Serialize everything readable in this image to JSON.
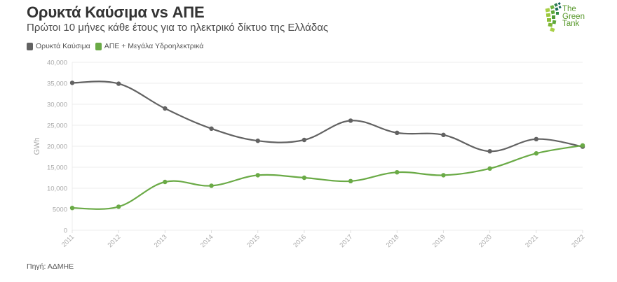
{
  "header": {
    "title": "Ορυκτά Καύσιμα vs ΑΠΕ",
    "subtitle": "Πρώτοι 10 μήνες κάθε έτους για το ηλεκτρικό δίκτυο της Ελλάδας"
  },
  "logo": {
    "line1": "The",
    "line2": "Green",
    "line3": "Tank"
  },
  "legend": [
    {
      "label": "Ορυκτά Καύσιμα",
      "color": "#626262"
    },
    {
      "label": "ΑΠΕ + Μεγάλα Υδροηλεκτρικά",
      "color": "#6aaa46"
    }
  ],
  "footer": {
    "source": "Πηγή: ΑΔΜΗΕ"
  },
  "chart_data": {
    "type": "line",
    "title": "Ορυκτά Καύσιμα vs ΑΠΕ",
    "subtitle": "Πρώτοι 10 μήνες κάθε έτους για το ηλεκτρικό δίκτυο της Ελλάδας",
    "xlabel": "",
    "ylabel": "GWh",
    "categories": [
      "2011",
      "2012",
      "2013",
      "2014",
      "2015",
      "2016",
      "2017",
      "2018",
      "2019",
      "2020",
      "2021",
      "2022"
    ],
    "series": [
      {
        "name": "Ορυκτά Καύσιμα",
        "color": "#626262",
        "values": [
          35100,
          34900,
          29000,
          24200,
          21300,
          21500,
          26100,
          23200,
          22700,
          18800,
          21700,
          19900
        ]
      },
      {
        "name": "ΑΠΕ + Μεγάλα Υδροηλεκτρικά",
        "color": "#6aaa46",
        "values": [
          5300,
          5600,
          11500,
          10600,
          13100,
          12500,
          11700,
          13800,
          13100,
          14700,
          18300,
          20200
        ]
      }
    ],
    "ylim": [
      0,
      40000
    ],
    "yticks": [
      0,
      5000,
      10000,
      15000,
      20000,
      25000,
      30000,
      35000,
      40000
    ],
    "ytick_labels": [
      "0",
      "5000",
      "10,000",
      "15,000",
      "20,000",
      "25,000",
      "30,000",
      "35,000",
      "40,000"
    ],
    "grid": true,
    "legend_position": "top-left",
    "smooth": true,
    "source": "Πηγή: ΑΔΜΗΕ"
  }
}
